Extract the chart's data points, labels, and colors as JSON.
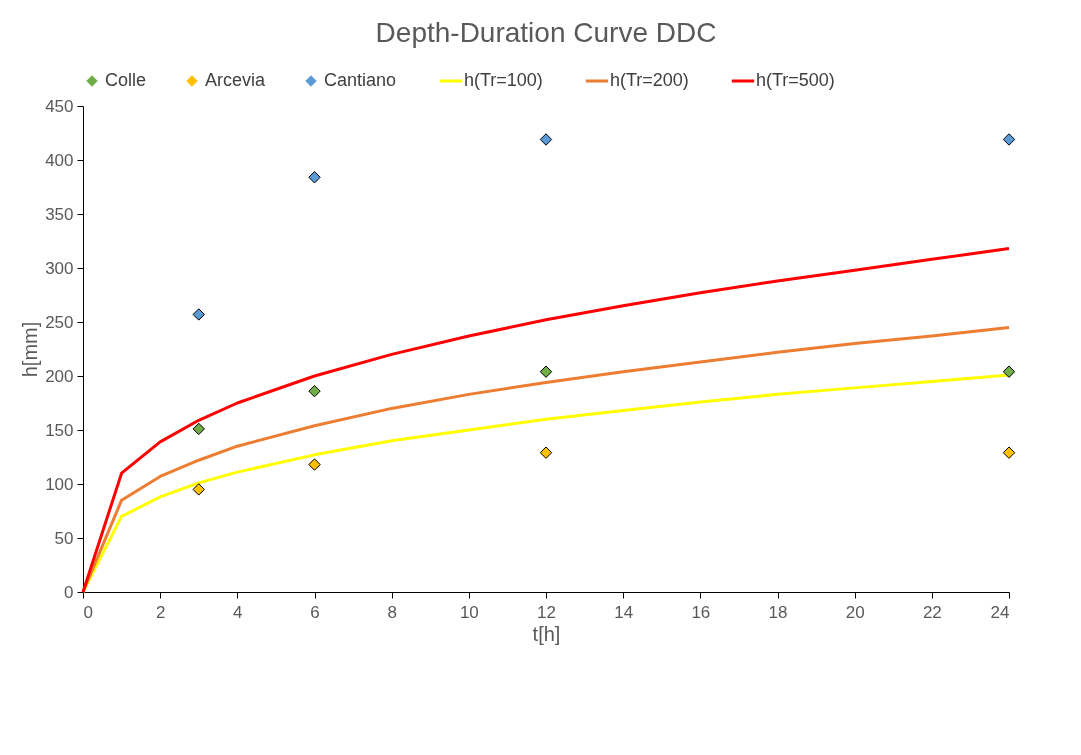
{
  "chart_data": {
    "type": "line",
    "title": "Depth-Duration Curve DDC",
    "xlabel": "t[h]",
    "ylabel": "h[mm]",
    "xlim": [
      0,
      24
    ],
    "xticks": [
      0,
      2,
      4,
      6,
      8,
      10,
      12,
      14,
      16,
      18,
      20,
      22,
      24
    ],
    "ylim": [
      0,
      450
    ],
    "yticks": [
      0,
      50,
      100,
      150,
      200,
      250,
      300,
      350,
      400,
      450
    ],
    "grid": false,
    "legend": "top",
    "series": [
      {
        "name": "Colle",
        "type": "scatter",
        "marker": "diamond",
        "color": "#70ad47",
        "x": [
          3,
          6,
          12,
          24
        ],
        "values": [
          151,
          186,
          204,
          204
        ]
      },
      {
        "name": "Arcevia",
        "type": "scatter",
        "marker": "diamond",
        "color": "#ffc000",
        "x": [
          3,
          6,
          12,
          24
        ],
        "values": [
          95,
          118,
          129,
          129
        ]
      },
      {
        "name": "Cantiano",
        "type": "scatter",
        "marker": "diamond",
        "color": "#5b9bd5",
        "x": [
          3,
          6,
          12,
          24
        ],
        "values": [
          257,
          384,
          419,
          419
        ]
      },
      {
        "name": "h(Tr=100)",
        "color": "#ffff00",
        "x": [
          0,
          1,
          2,
          3,
          4,
          6,
          8,
          10,
          12,
          14,
          16,
          18,
          20,
          22,
          24
        ],
        "values": [
          0,
          70,
          88,
          101,
          111,
          127,
          140,
          150,
          160,
          168,
          176,
          183,
          189,
          195,
          201
        ]
      },
      {
        "name": "h(Tr=200)",
        "color": "#ed7d31",
        "x": [
          0,
          1,
          2,
          3,
          4,
          6,
          8,
          10,
          12,
          14,
          16,
          18,
          20,
          22,
          24
        ],
        "values": [
          0,
          85,
          107,
          122,
          135,
          154,
          170,
          183,
          194,
          204,
          213,
          222,
          230,
          237,
          245
        ]
      },
      {
        "name": "h(Tr=500)",
        "color": "#ff0000",
        "x": [
          0,
          1,
          2,
          3,
          4,
          6,
          8,
          10,
          12,
          14,
          16,
          18,
          20,
          22,
          24
        ],
        "values": [
          0,
          110,
          139,
          159,
          175,
          200,
          220,
          237,
          252,
          265,
          277,
          288,
          298,
          308,
          318
        ]
      }
    ]
  }
}
